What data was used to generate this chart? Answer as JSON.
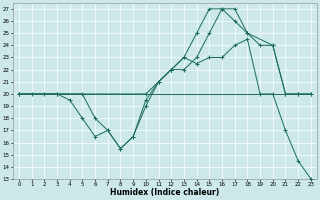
{
  "title": "",
  "xlabel": "Humidex (Indice chaleur)",
  "xlim": [
    -0.5,
    23.5
  ],
  "ylim": [
    13,
    27.5
  ],
  "yticks": [
    13,
    14,
    15,
    16,
    17,
    18,
    19,
    20,
    21,
    22,
    23,
    24,
    25,
    26,
    27
  ],
  "xticks": [
    0,
    1,
    2,
    3,
    4,
    5,
    6,
    7,
    8,
    9,
    10,
    11,
    12,
    13,
    14,
    15,
    16,
    17,
    18,
    19,
    20,
    21,
    22,
    23
  ],
  "bg_color": "#cce8e8",
  "line_color": "#1a6b5e",
  "series": [
    {
      "x": [
        0,
        1,
        2,
        3,
        4,
        5,
        6,
        7,
        8,
        9,
        10,
        11,
        12,
        13,
        14,
        15,
        16,
        17,
        18,
        19,
        20,
        21,
        22,
        23
      ],
      "y": [
        20,
        20,
        20,
        20,
        20,
        20,
        20,
        20,
        20,
        20,
        20,
        20,
        20,
        20,
        20,
        20,
        20,
        20,
        20,
        20,
        20,
        20,
        20,
        20
      ],
      "marker": false
    },
    {
      "x": [
        0,
        1,
        2,
        3,
        4,
        5,
        6,
        7,
        8,
        9,
        10,
        11,
        12,
        13,
        14,
        15,
        16,
        17,
        18,
        19,
        20,
        21,
        22,
        23
      ],
      "y": [
        20,
        20,
        20,
        20,
        19.5,
        18,
        16.5,
        17,
        15.5,
        16.5,
        19.5,
        21,
        22,
        23,
        22.5,
        23,
        23,
        24,
        24.5,
        20,
        20,
        17,
        14.5,
        13
      ],
      "marker": true
    },
    {
      "x": [
        0,
        3,
        10,
        11,
        12,
        13,
        14,
        15,
        16,
        17,
        18,
        20,
        21,
        22,
        23
      ],
      "y": [
        20,
        20,
        20,
        21,
        22,
        22,
        23,
        25,
        27,
        27,
        25,
        24,
        20,
        20,
        20
      ],
      "marker": true
    },
    {
      "x": [
        0,
        3,
        5,
        6,
        7,
        8,
        9,
        10,
        11,
        12,
        13,
        14,
        15,
        16,
        17,
        18,
        19,
        20,
        21,
        22,
        23
      ],
      "y": [
        20,
        20,
        20,
        18,
        17,
        15.5,
        16.5,
        19,
        21,
        22,
        23,
        25,
        27,
        27,
        26,
        25,
        24,
        24,
        20,
        20,
        20
      ],
      "marker": true
    }
  ]
}
